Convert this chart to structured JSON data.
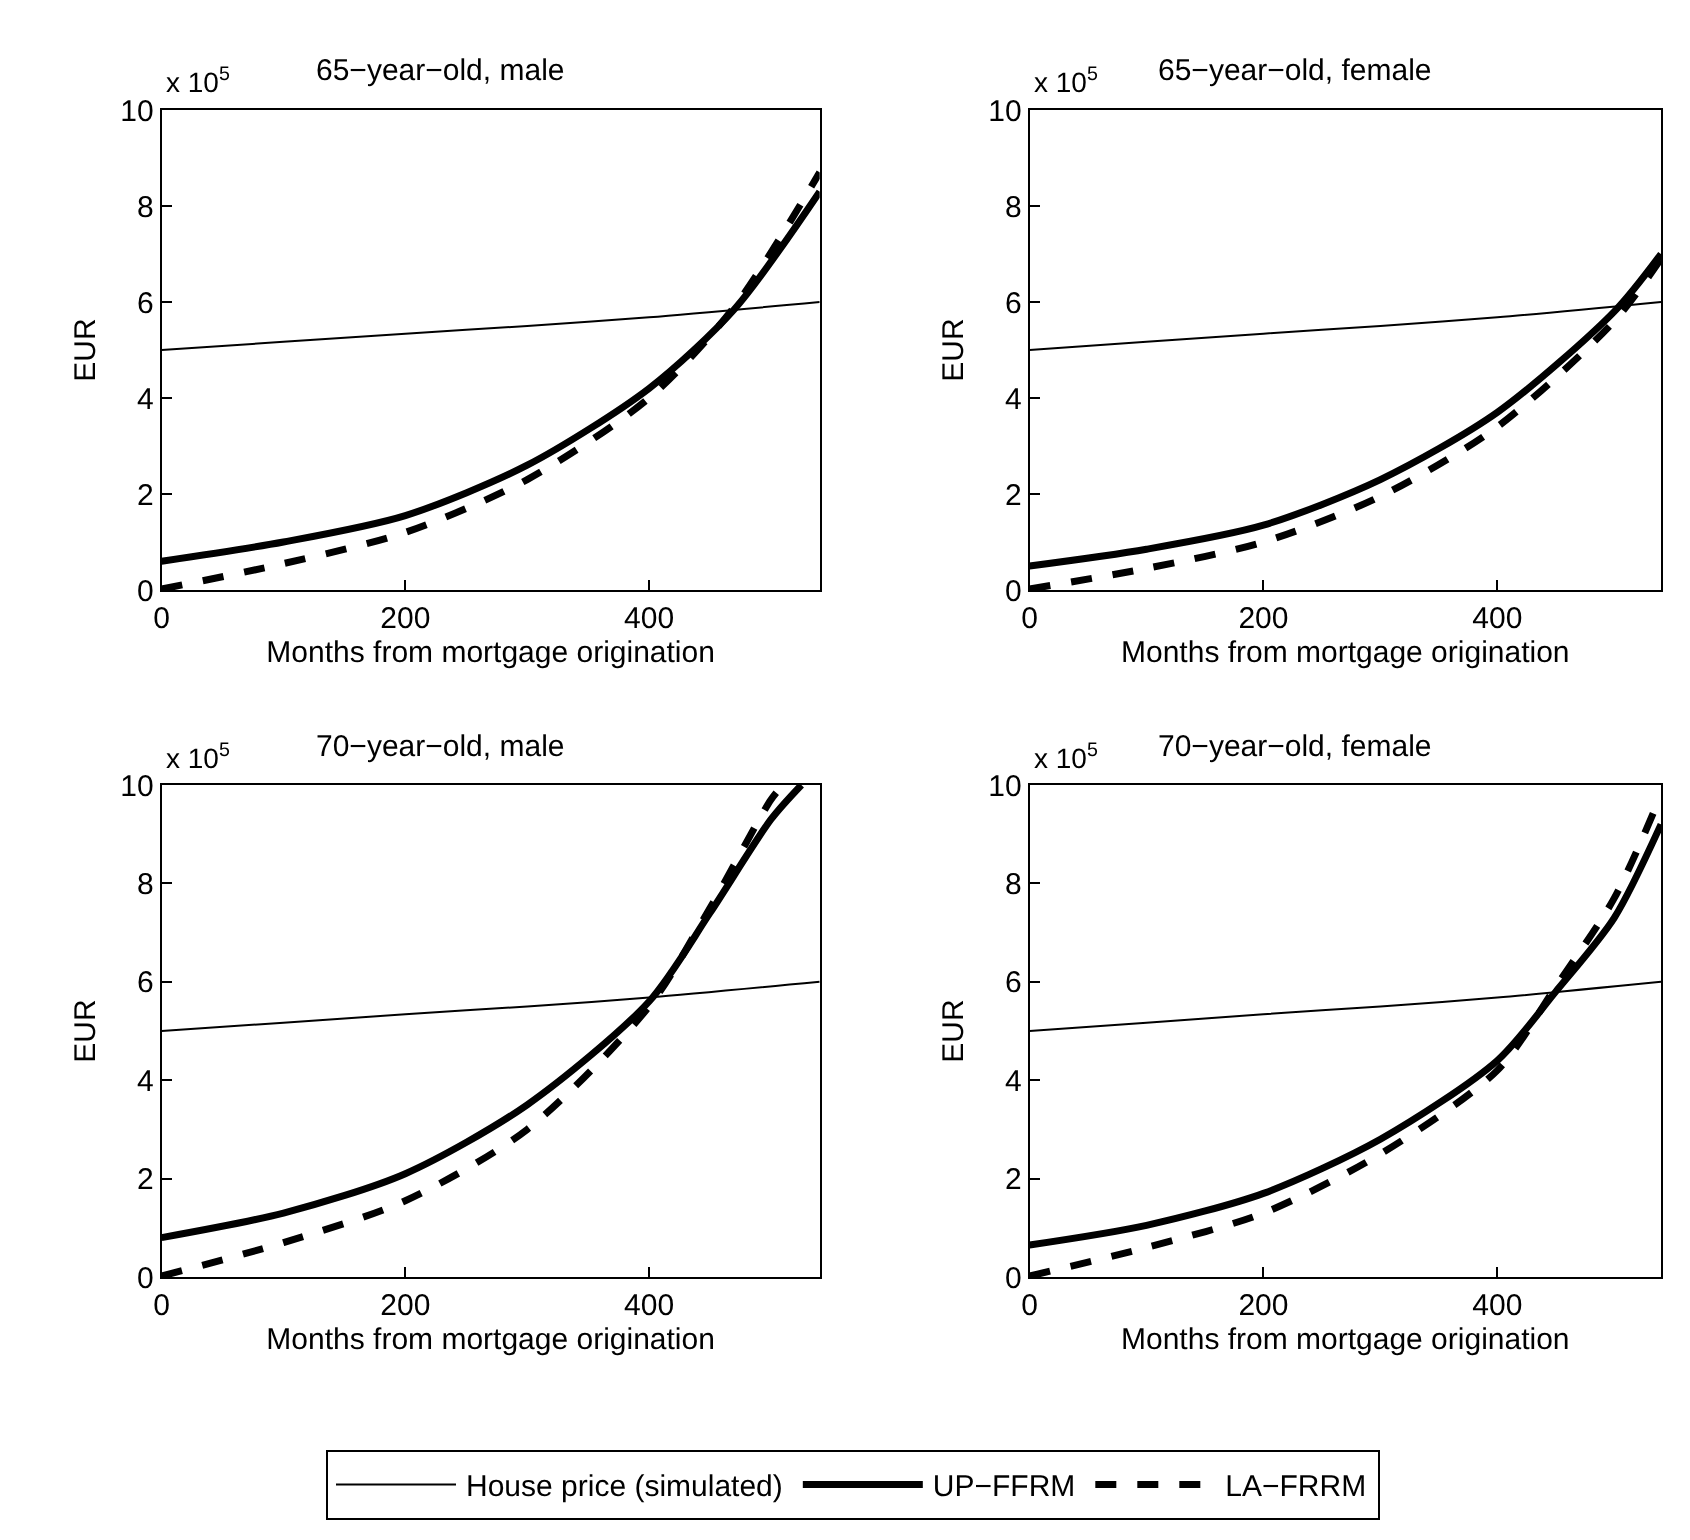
{
  "chart_data": [
    {
      "type": "line",
      "title": "65−year−old, male",
      "xlabel": "Months from mortgage origination",
      "ylabel": "EUR",
      "annotations": [
        "x 10$^{5}$"
      ],
      "xlim": [
        0,
        540
      ],
      "xticks": [
        0,
        200,
        400
      ],
      "ylim": [
        0,
        10
      ],
      "yticks": [
        0,
        2,
        4,
        6,
        8,
        10
      ],
      "legend": "bottom",
      "series": [
        {
          "name": "House price (simulated)",
          "color": "#000000",
          "line_style": "solid",
          "x": [
            0,
            100,
            200,
            300,
            400,
            540
          ],
          "values": [
            5.0,
            5.17,
            5.34,
            5.5,
            5.68,
            6.0
          ]
        },
        {
          "name": "UP−FFRM",
          "color": "#000000",
          "line_style": "solid",
          "x": [
            0,
            100,
            200,
            300,
            400,
            470,
            540
          ],
          "values": [
            0.6,
            1.0,
            1.55,
            2.6,
            4.2,
            5.85,
            8.3
          ]
        },
        {
          "name": "LA−FRRM",
          "color": "#000000",
          "line_style": "dashed",
          "x": [
            0,
            100,
            200,
            300,
            400,
            470,
            540
          ],
          "values": [
            0.02,
            0.55,
            1.2,
            2.3,
            4.0,
            5.9,
            8.7
          ]
        }
      ]
    },
    {
      "type": "line",
      "title": "65−year−old, female",
      "xlabel": "Months from mortgage origination",
      "ylabel": "EUR",
      "annotations": [
        "x 10$^{5}$"
      ],
      "xlim": [
        0,
        540
      ],
      "xticks": [
        0,
        200,
        400
      ],
      "ylim": [
        0,
        10
      ],
      "yticks": [
        0,
        2,
        4,
        6,
        8,
        10
      ],
      "series": [
        {
          "color": "#000000",
          "line_style": "solid",
          "x": [
            0,
            100,
            200,
            300,
            400,
            540
          ],
          "values": [
            5.0,
            5.17,
            5.34,
            5.5,
            5.68,
            6.0
          ]
        },
        {
          "color": "#000000",
          "line_style": "solid",
          "x": [
            0,
            100,
            200,
            300,
            400,
            500,
            540
          ],
          "values": [
            0.5,
            0.85,
            1.35,
            2.3,
            3.7,
            5.8,
            7.0
          ]
        },
        {
          "color": "#000000",
          "line_style": "dashed",
          "x": [
            0,
            100,
            200,
            300,
            400,
            500,
            540
          ],
          "values": [
            0.02,
            0.45,
            1.0,
            1.95,
            3.4,
            5.6,
            6.9
          ]
        }
      ]
    },
    {
      "type": "line",
      "title": "70−year−old, male",
      "xlabel": "Months from mortgage origination",
      "ylabel": "EUR",
      "annotations": [
        "x 10$^{5}$"
      ],
      "xlim": [
        0,
        540
      ],
      "xticks": [
        0,
        200,
        400
      ],
      "ylim": [
        0,
        10
      ],
      "yticks": [
        0,
        2,
        4,
        6,
        8,
        10
      ],
      "series": [
        {
          "color": "#000000",
          "line_style": "solid",
          "x": [
            0,
            100,
            200,
            300,
            400,
            540
          ],
          "values": [
            5.0,
            5.17,
            5.34,
            5.5,
            5.68,
            6.0
          ]
        },
        {
          "color": "#000000",
          "line_style": "solid",
          "x": [
            0,
            100,
            200,
            300,
            400,
            450,
            500,
            525
          ],
          "values": [
            0.8,
            1.3,
            2.1,
            3.5,
            5.6,
            7.4,
            9.3,
            10.0
          ]
        },
        {
          "color": "#000000",
          "line_style": "dashed",
          "x": [
            0,
            100,
            200,
            300,
            400,
            450,
            500,
            510
          ],
          "values": [
            0.02,
            0.7,
            1.55,
            3.0,
            5.5,
            7.5,
            9.7,
            10.0
          ]
        }
      ]
    },
    {
      "type": "line",
      "title": "70−year−old, female",
      "xlabel": "Months from mortgage origination",
      "ylabel": "EUR",
      "annotations": [
        "x 10$^{5}$"
      ],
      "xlim": [
        0,
        540
      ],
      "xticks": [
        0,
        200,
        400
      ],
      "ylim": [
        0,
        10
      ],
      "yticks": [
        0,
        2,
        4,
        6,
        8,
        10
      ],
      "series": [
        {
          "color": "#000000",
          "line_style": "solid",
          "x": [
            0,
            100,
            200,
            300,
            400,
            540
          ],
          "values": [
            5.0,
            5.17,
            5.34,
            5.5,
            5.68,
            6.0
          ]
        },
        {
          "color": "#000000",
          "line_style": "solid",
          "x": [
            0,
            100,
            200,
            300,
            400,
            450,
            500,
            540
          ],
          "values": [
            0.65,
            1.05,
            1.7,
            2.8,
            4.4,
            5.8,
            7.3,
            9.2
          ]
        },
        {
          "color": "#000000",
          "line_style": "dashed",
          "x": [
            0,
            100,
            200,
            300,
            400,
            450,
            500,
            540
          ],
          "values": [
            0.02,
            0.6,
            1.3,
            2.5,
            4.2,
            5.9,
            7.7,
            9.8
          ]
        }
      ]
    }
  ]
}
